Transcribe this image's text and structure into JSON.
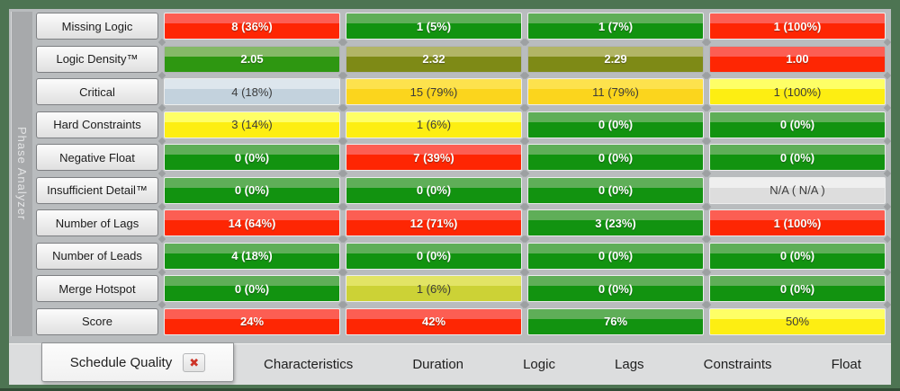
{
  "panel": {
    "vertical_label": "Phase Analyzer"
  },
  "palettes": {
    "red": {
      "top": "#fc5e53",
      "bottom": "#fe2603",
      "text": "light"
    },
    "green": {
      "top": "#5fae58",
      "bottom": "#129310",
      "text": "light"
    },
    "green2": {
      "top": "#85b967",
      "bottom": "#2e9711",
      "text": "light"
    },
    "olive": {
      "top": "#b2b566",
      "bottom": "#7e8a16",
      "text": "light"
    },
    "yellow": {
      "top": "#feff66",
      "bottom": "#fdee12",
      "text": "dark"
    },
    "gold": {
      "top": "#fde24d",
      "bottom": "#fbd51d",
      "text": "dark"
    },
    "bluegray": {
      "top": "#dde6ed",
      "bottom": "#c3d2dd",
      "text": "dark"
    },
    "gray": {
      "top": "#efefef",
      "bottom": "#dddddd",
      "text": "dark"
    },
    "yellowgreen": {
      "top": "#e2e465",
      "bottom": "#ccd236",
      "text": "dark"
    }
  },
  "rows": [
    {
      "label": "Missing Logic",
      "cells": [
        {
          "value": "8 (36%)",
          "color": "red"
        },
        {
          "value": "1 (5%)",
          "color": "green"
        },
        {
          "value": "1 (7%)",
          "color": "green"
        },
        {
          "value": "1 (100%)",
          "color": "red"
        }
      ]
    },
    {
      "label": "Logic Density™",
      "cells": [
        {
          "value": "2.05",
          "color": "green2"
        },
        {
          "value": "2.32",
          "color": "olive"
        },
        {
          "value": "2.29",
          "color": "olive"
        },
        {
          "value": "1.00",
          "color": "red"
        }
      ]
    },
    {
      "label": "Critical",
      "cells": [
        {
          "value": "4 (18%)",
          "color": "bluegray"
        },
        {
          "value": "15 (79%)",
          "color": "gold"
        },
        {
          "value": "11 (79%)",
          "color": "gold"
        },
        {
          "value": "1 (100%)",
          "color": "yellow"
        }
      ]
    },
    {
      "label": "Hard Constraints",
      "cells": [
        {
          "value": "3 (14%)",
          "color": "yellow"
        },
        {
          "value": "1 (6%)",
          "color": "yellow"
        },
        {
          "value": "0 (0%)",
          "color": "green"
        },
        {
          "value": "0 (0%)",
          "color": "green"
        }
      ]
    },
    {
      "label": "Negative Float",
      "cells": [
        {
          "value": "0 (0%)",
          "color": "green"
        },
        {
          "value": "7 (39%)",
          "color": "red"
        },
        {
          "value": "0 (0%)",
          "color": "green"
        },
        {
          "value": "0 (0%)",
          "color": "green"
        }
      ]
    },
    {
      "label": "Insufficient Detail™",
      "cells": [
        {
          "value": "0 (0%)",
          "color": "green"
        },
        {
          "value": "0 (0%)",
          "color": "green"
        },
        {
          "value": "0 (0%)",
          "color": "green"
        },
        {
          "value": "N/A ( N/A )",
          "color": "gray"
        }
      ]
    },
    {
      "label": "Number of Lags",
      "cells": [
        {
          "value": "14 (64%)",
          "color": "red"
        },
        {
          "value": "12 (71%)",
          "color": "red"
        },
        {
          "value": "3 (23%)",
          "color": "green"
        },
        {
          "value": "1 (100%)",
          "color": "red"
        }
      ]
    },
    {
      "label": "Number of Leads",
      "cells": [
        {
          "value": "4 (18%)",
          "color": "green"
        },
        {
          "value": "0 (0%)",
          "color": "green"
        },
        {
          "value": "0 (0%)",
          "color": "green"
        },
        {
          "value": "0 (0%)",
          "color": "green"
        }
      ]
    },
    {
      "label": "Merge Hotspot",
      "cells": [
        {
          "value": "0 (0%)",
          "color": "green"
        },
        {
          "value": "1 (6%)",
          "color": "yellowgreen"
        },
        {
          "value": "0 (0%)",
          "color": "green"
        },
        {
          "value": "0 (0%)",
          "color": "green"
        }
      ]
    },
    {
      "label": "Score",
      "cells": [
        {
          "value": "24%",
          "color": "red"
        },
        {
          "value": "42%",
          "color": "red"
        },
        {
          "value": "76%",
          "color": "green"
        },
        {
          "value": "50%",
          "color": "yellow"
        }
      ]
    }
  ],
  "tabs": {
    "active": {
      "label": "Schedule Quality",
      "close_icon": "✖"
    },
    "items": [
      "Characteristics",
      "Duration",
      "Logic",
      "Lags",
      "Constraints",
      "Float"
    ]
  }
}
